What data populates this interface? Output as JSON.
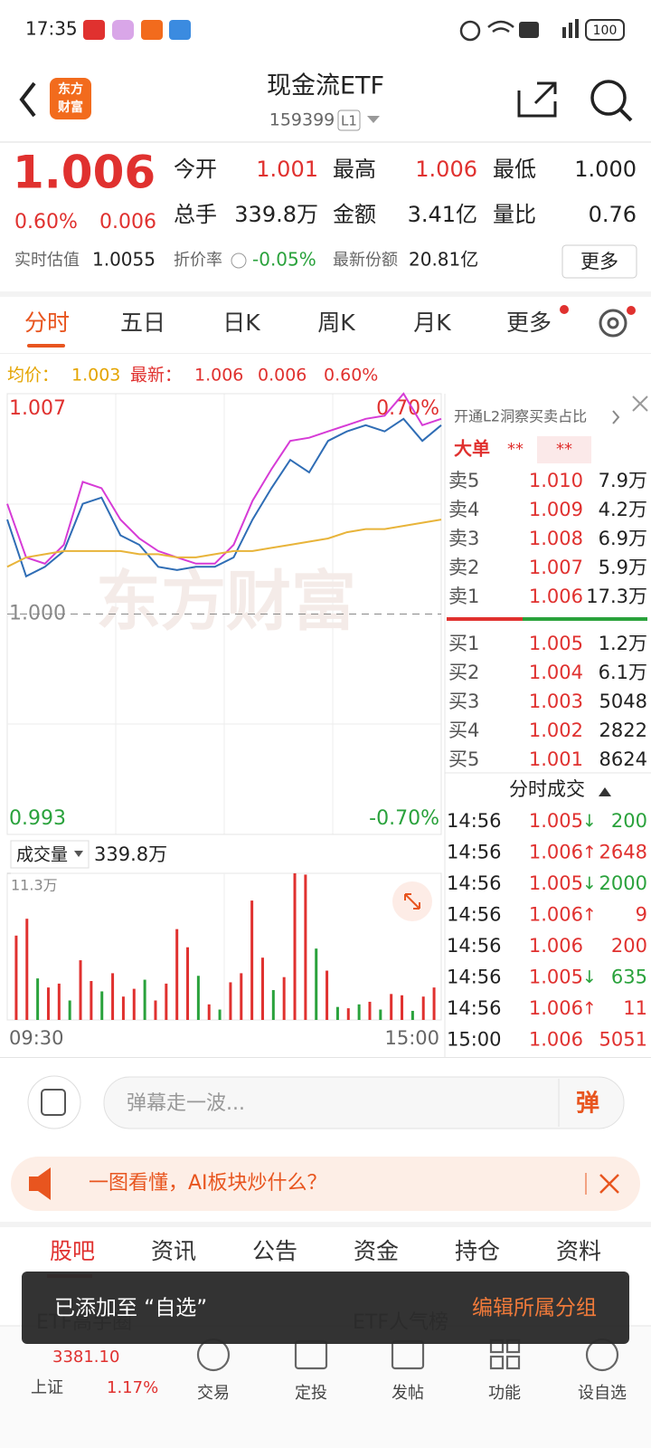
{
  "status_bar": {
    "time": "17:35",
    "battery": "100"
  },
  "header": {
    "logo": [
      "东方",
      "财富"
    ],
    "title": "现金流ETF",
    "code": "159399",
    "level": "L1"
  },
  "quote": {
    "price": "1.006",
    "change_pct": "0.60%",
    "change": "0.006",
    "fields": [
      {
        "label": "今开",
        "value": "1.001"
      },
      {
        "label": "最高",
        "value": "1.006"
      },
      {
        "label": "最低",
        "value": "1.000"
      },
      {
        "label": "总手",
        "value": "339.8万"
      },
      {
        "label": "金额",
        "value": "3.41亿"
      },
      {
        "label": "量比",
        "value": "0.76"
      }
    ],
    "estimate_label": "实时估值",
    "estimate": "1.0055",
    "discount_label": "折价率",
    "discount": "-0.05%",
    "shares_label": "最新份额",
    "shares": "20.81亿",
    "more": "更多"
  },
  "tabs": [
    "分时",
    "五日",
    "日K",
    "周K",
    "月K",
    "更多"
  ],
  "summary": {
    "avg_label": "均价：",
    "avg": "1.003",
    "last_label": "最新：",
    "last": "1.006",
    "change": "0.006",
    "change_pct": "0.60%"
  },
  "price_chart": {
    "type": "line",
    "watermark": "东方财富",
    "ylim": [
      0.993,
      1.007
    ],
    "yticks": [
      1.007,
      {
        "value": 1,
        "label": "1.000"
      },
      0.993
    ],
    "y2lim": [
      -0.7,
      0.7
    ],
    "y2ticks": [
      {
        "value": 0.7,
        "label": "0.70%"
      },
      {
        "value": -0.7,
        "label": "-0.70%"
      }
    ],
    "series": [
      {
        "color": "#d63bd6",
        "values": [
          1.0035,
          1.0018,
          1.0016,
          1.0022,
          1.0042,
          1.004,
          1.003,
          1.0024,
          1.002,
          1.0018,
          1.0016,
          1.0016,
          1.0022,
          1.0036,
          1.0046,
          1.0055,
          1.0056,
          1.0058,
          1.006,
          1.0062,
          1.0063,
          1.007,
          1.006,
          1.0062
        ]
      },
      {
        "color": "#2f6db5",
        "values": [
          1.003,
          1.0012,
          1.0015,
          1.002,
          1.0035,
          1.0037,
          1.0025,
          1.0022,
          1.0015,
          1.0014,
          1.0015,
          1.0015,
          1.0018,
          1.003,
          1.004,
          1.0049,
          1.0045,
          1.0055,
          1.0058,
          1.006,
          1.0058,
          1.0062,
          1.0055,
          1.006
        ]
      },
      {
        "color": "#e8b43a",
        "values": [
          1.0015,
          1.0018,
          1.0019,
          1.002,
          1.002,
          1.002,
          1.002,
          1.0019,
          1.0019,
          1.0018,
          1.0018,
          1.0019,
          1.002,
          1.002,
          1.0021,
          1.0022,
          1.0023,
          1.0024,
          1.0026,
          1.0027,
          1.0027,
          1.0028,
          1.0029,
          1.003
        ]
      }
    ]
  },
  "volume_chart": {
    "type": "bar",
    "label": "成交量",
    "total": "339.8万",
    "ylim": [
      0,
      11.3
    ],
    "yticks": [
      {
        "value": 11.3,
        "label": "11.3万"
      }
    ],
    "values": [
      6.5,
      7.8,
      3.2,
      2.5,
      2.8,
      1.5,
      4.6,
      3.0,
      2.2,
      3.6,
      1.8,
      2.4,
      3.1,
      1.5,
      2.8,
      7.0,
      5.6,
      3.4,
      1.2,
      0.8,
      2.9,
      3.6,
      9.2,
      4.8,
      2.3,
      3.3,
      11.3,
      11.2,
      5.5,
      3.8,
      1.0,
      0.9,
      1.2,
      1.4,
      0.8,
      2.0,
      1.9,
      0.7,
      1.8,
      2.5
    ],
    "colors": [
      "#e0312f",
      "#e0312f",
      "#2aa23c",
      "#e0312f",
      "#e0312f",
      "#2aa23c",
      "#e0312f",
      "#e0312f",
      "#2aa23c",
      "#e0312f",
      "#e0312f",
      "#e0312f",
      "#2aa23c",
      "#e0312f",
      "#e0312f",
      "#e0312f",
      "#e0312f",
      "#2aa23c",
      "#e0312f",
      "#2aa23c",
      "#e0312f",
      "#e0312f",
      "#e0312f",
      "#e0312f",
      "#2aa23c",
      "#e0312f",
      "#e0312f",
      "#e0312f",
      "#2aa23c",
      "#e0312f",
      "#2aa23c",
      "#e0312f",
      "#2aa23c",
      "#e0312f",
      "#2aa23c",
      "#e0312f",
      "#e0312f",
      "#2aa23c",
      "#e0312f",
      "#e0312f"
    ],
    "x_labels": [
      "09:30",
      "15:00"
    ]
  },
  "order_book": {
    "promo": "开通L2洞察买卖占比",
    "big_order": "大单",
    "masked": [
      "**",
      "**"
    ],
    "asks": [
      {
        "label": "卖5",
        "price": "1.010",
        "volume": "7.9万"
      },
      {
        "label": "卖4",
        "price": "1.009",
        "volume": "4.2万"
      },
      {
        "label": "卖3",
        "price": "1.008",
        "volume": "6.9万"
      },
      {
        "label": "卖2",
        "price": "1.007",
        "volume": "5.9万"
      },
      {
        "label": "卖1",
        "price": "1.006",
        "volume": "17.3万"
      }
    ],
    "bids": [
      {
        "label": "买1",
        "price": "1.005",
        "volume": "1.2万"
      },
      {
        "label": "买2",
        "price": "1.004",
        "volume": "6.1万"
      },
      {
        "label": "买3",
        "price": "1.003",
        "volume": "5048"
      },
      {
        "label": "买4",
        "price": "1.002",
        "volume": "2822"
      },
      {
        "label": "买5",
        "price": "1.001",
        "volume": "8624"
      }
    ]
  },
  "trades": {
    "title": "分时成交",
    "rows": [
      {
        "time": "14:56",
        "price": "1.005",
        "dir": "↓",
        "volume": "200"
      },
      {
        "time": "14:56",
        "price": "1.006",
        "dir": "↑",
        "volume": "2648"
      },
      {
        "time": "14:56",
        "price": "1.005",
        "dir": "↓",
        "volume": "2000"
      },
      {
        "time": "14:56",
        "price": "1.006",
        "dir": "↑",
        "volume": "9"
      },
      {
        "time": "14:56",
        "price": "1.006",
        "volume": "200"
      },
      {
        "time": "14:56",
        "price": "1.005",
        "dir": "↓",
        "volume": "635"
      },
      {
        "time": "14:56",
        "price": "1.006",
        "dir": "↑",
        "volume": "11"
      },
      {
        "time": "15:00",
        "price": "1.006",
        "volume": "5051"
      }
    ]
  },
  "danmaku": {
    "placeholder": "弹幕走一波...",
    "button": "弹"
  },
  "banner": "一图看懂，AI板块炒什么？",
  "content_tabs": [
    "股吧",
    "资讯",
    "公告",
    "资金",
    "持仓",
    "资料"
  ],
  "cards": [
    "ETF高手圈",
    "ETF人气榜"
  ],
  "toast": {
    "message": "已添加至 “自选”",
    "action": "编辑所属分组"
  },
  "bottom_nav": {
    "index_value": "3381.10",
    "index_name": "上证",
    "index_change": "1.17%",
    "items": [
      "交易",
      "定投",
      "发帖",
      "功能",
      "设自选"
    ]
  }
}
